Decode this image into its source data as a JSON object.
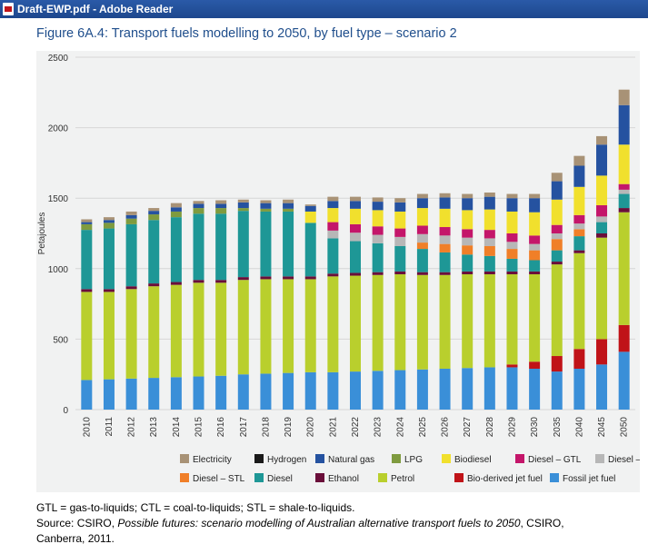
{
  "window": {
    "title": "Draft-EWP.pdf - Adobe Reader",
    "icon": "pdf-file-icon"
  },
  "figure_title": "Figure 6A.4: Transport fuels modelling to 2050, by fuel type – scenario 2",
  "notes": {
    "line1": "GTL = gas-to-liquids; CTL = coal-to-liquids; STL = shale-to-liquids.",
    "source_prefix": "Source: CSIRO, ",
    "source_italic": "Possible futures: scenario modelling of Australian alternative transport fuels to 2050",
    "source_suffix": ", CSIRO,",
    "line3": "Canberra, 2011."
  },
  "chart_data": {
    "type": "bar",
    "stacked": true,
    "ylabel": "Petajoules",
    "xlabel": "",
    "ylim": [
      0,
      2500
    ],
    "yticks": [
      0,
      500,
      1000,
      1500,
      2000,
      2500
    ],
    "grid": true,
    "legend_position": "bottom",
    "categories": [
      "2010",
      "2011",
      "2012",
      "2013",
      "2014",
      "2015",
      "2016",
      "2017",
      "2018",
      "2019",
      "2020",
      "2021",
      "2022",
      "2023",
      "2024",
      "2025",
      "2026",
      "2027",
      "2028",
      "2029",
      "2030",
      "2035",
      "2040",
      "2045",
      "2050"
    ],
    "series": [
      {
        "name": "Fossil jet fuel",
        "color": "#3a8fd8",
        "values": [
          210,
          215,
          220,
          225,
          230,
          235,
          240,
          250,
          255,
          260,
          265,
          265,
          270,
          275,
          280,
          285,
          290,
          295,
          300,
          300,
          290,
          270,
          290,
          320,
          410
        ]
      },
      {
        "name": "Bio-derived jet fuel",
        "color": "#c01318",
        "values": [
          0,
          0,
          0,
          0,
          0,
          0,
          0,
          0,
          0,
          0,
          0,
          0,
          0,
          0,
          0,
          0,
          0,
          0,
          0,
          20,
          50,
          110,
          140,
          180,
          190
        ]
      },
      {
        "name": "Petrol",
        "color": "#b9cf2d",
        "values": [
          625,
          620,
          635,
          650,
          655,
          665,
          660,
          670,
          670,
          665,
          660,
          680,
          680,
          680,
          680,
          670,
          665,
          665,
          660,
          640,
          620,
          650,
          680,
          720,
          800
        ]
      },
      {
        "name": "Ethanol",
        "color": "#6a0f3a",
        "values": [
          20,
          20,
          20,
          20,
          20,
          20,
          20,
          20,
          20,
          20,
          20,
          20,
          20,
          20,
          20,
          20,
          20,
          20,
          20,
          20,
          20,
          20,
          20,
          30,
          30
        ]
      },
      {
        "name": "Diesel",
        "color": "#1e9796",
        "values": [
          420,
          430,
          440,
          450,
          460,
          470,
          470,
          470,
          460,
          460,
          380,
          250,
          225,
          205,
          180,
          165,
          140,
          120,
          110,
          90,
          80,
          80,
          100,
          80,
          100
        ]
      },
      {
        "name": "Diesel – STL",
        "color": "#f07f28",
        "values": [
          0,
          0,
          0,
          0,
          0,
          0,
          0,
          0,
          0,
          0,
          0,
          0,
          0,
          0,
          0,
          45,
          60,
          65,
          70,
          70,
          70,
          80,
          50,
          0,
          0
        ]
      },
      {
        "name": "Diesel – CTL",
        "color": "#b7b7b7",
        "values": [
          0,
          0,
          0,
          0,
          0,
          0,
          0,
          0,
          0,
          0,
          0,
          55,
          60,
          60,
          65,
          60,
          60,
          55,
          55,
          50,
          45,
          40,
          40,
          40,
          30
        ]
      },
      {
        "name": "Diesel – GTL",
        "color": "#c4166a",
        "values": [
          0,
          0,
          0,
          0,
          0,
          0,
          0,
          0,
          0,
          0,
          0,
          60,
          60,
          60,
          60,
          60,
          60,
          60,
          60,
          60,
          60,
          60,
          60,
          80,
          40
        ]
      },
      {
        "name": "Biodiesel",
        "color": "#f1e02d",
        "values": [
          0,
          0,
          0,
          0,
          0,
          0,
          0,
          0,
          0,
          0,
          80,
          100,
          110,
          115,
          120,
          125,
          130,
          135,
          145,
          155,
          165,
          180,
          200,
          210,
          280
        ]
      },
      {
        "name": "LPG",
        "color": "#7f9b3f",
        "values": [
          40,
          40,
          40,
          40,
          40,
          40,
          40,
          20,
          20,
          20,
          0,
          0,
          0,
          0,
          0,
          0,
          0,
          0,
          0,
          0,
          0,
          0,
          0,
          0,
          0
        ]
      },
      {
        "name": "Natural gas",
        "color": "#2552a0",
        "values": [
          15,
          20,
          25,
          25,
          30,
          30,
          30,
          40,
          40,
          40,
          40,
          50,
          55,
          60,
          65,
          70,
          80,
          85,
          90,
          95,
          100,
          130,
          150,
          220,
          280
        ]
      },
      {
        "name": "Hydrogen",
        "color": "#1a1a1a",
        "values": [
          0,
          0,
          0,
          0,
          0,
          0,
          0,
          0,
          0,
          0,
          0,
          0,
          0,
          0,
          0,
          0,
          0,
          0,
          0,
          0,
          0,
          0,
          0,
          0,
          0
        ]
      },
      {
        "name": "Electricity",
        "color": "#a89276",
        "values": [
          20,
          20,
          25,
          20,
          30,
          20,
          25,
          20,
          20,
          25,
          10,
          30,
          30,
          30,
          30,
          30,
          30,
          30,
          30,
          30,
          30,
          60,
          70,
          60,
          110
        ]
      }
    ],
    "legend_order": [
      "Electricity",
      "Hydrogen",
      "Natural gas",
      "LPG",
      "Biodiesel",
      "Diesel – GTL",
      "Diesel – CTL",
      "Diesel – STL",
      "Diesel",
      "Ethanol",
      "Petrol",
      "Bio-derived jet fuel",
      "Fossil jet fuel"
    ]
  }
}
